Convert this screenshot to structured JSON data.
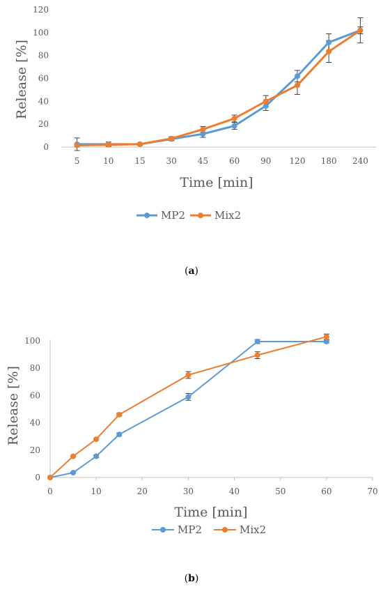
{
  "colors": {
    "MP2": "#5b9bd5",
    "Mix2": "#ed7d31",
    "axis": "#bfbfbf",
    "text": "#595959",
    "error_bar": "#404040"
  },
  "chart_data": [
    {
      "type": "line",
      "caption_label": "a",
      "xlabel": "Time [min]",
      "ylabel": "Release [%]",
      "categories": [
        "5",
        "10",
        "15",
        "30",
        "45",
        "60",
        "90",
        "120",
        "180",
        "240"
      ],
      "ylim": [
        0,
        120
      ],
      "y_ticks": [
        "0",
        "20",
        "40",
        "60",
        "80",
        "100",
        "120"
      ],
      "grid": false,
      "legend_position": "bottom",
      "series": [
        {
          "name": "MP2",
          "values": [
            2.5,
            2.5,
            2.5,
            7,
            11.5,
            18.5,
            36,
            62,
            91.5,
            102
          ],
          "errors": [
            5.5,
            2,
            1,
            1.5,
            3,
            3,
            4,
            5,
            7.5,
            11
          ]
        },
        {
          "name": "Mix2",
          "values": [
            1.5,
            2,
            2.5,
            7.5,
            15.5,
            25,
            40,
            54,
            83.5,
            102
          ],
          "errors": [
            1,
            1,
            1,
            1.5,
            2.5,
            3,
            5,
            8,
            9.5,
            3
          ]
        }
      ]
    },
    {
      "type": "line",
      "caption_label": "b",
      "xlabel": "Time [min]",
      "ylabel": "Release [%]",
      "xlim": [
        0,
        70
      ],
      "ylim": [
        0,
        100
      ],
      "x_ticks": [
        "0",
        "10",
        "20",
        "30",
        "40",
        "50",
        "60",
        "70"
      ],
      "y_ticks": [
        "0",
        "20",
        "40",
        "60",
        "80",
        "100"
      ],
      "grid": false,
      "legend_position": "bottom",
      "series": [
        {
          "name": "MP2",
          "x": [
            0,
            5,
            10,
            15,
            30,
            45,
            60
          ],
          "values": [
            0,
            3.5,
            15.5,
            31.5,
            59,
            99.5,
            99.5
          ],
          "errors": [
            0,
            0.5,
            1,
            1,
            2.5,
            1.5,
            1
          ]
        },
        {
          "name": "Mix2",
          "x": [
            0,
            5,
            10,
            15,
            30,
            45,
            60
          ],
          "values": [
            0,
            15.5,
            28,
            46,
            75,
            89.5,
            103
          ],
          "errors": [
            0,
            0.5,
            0.5,
            1,
            2.5,
            2.5,
            2
          ]
        }
      ]
    }
  ]
}
